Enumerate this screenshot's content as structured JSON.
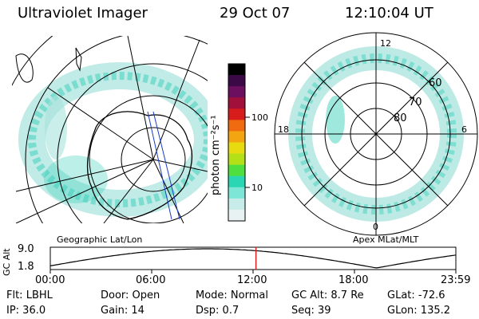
{
  "header": {
    "title": "Ultraviolet Imager",
    "date": "29 Oct 07",
    "time": "12:10:04 UT"
  },
  "left_map": {
    "label": "Geographic Lat/Lon"
  },
  "right_map": {
    "label": "Apex  MLat/MLT",
    "mlt_labels": [
      "12",
      "18",
      "6",
      "0"
    ],
    "lat_labels": [
      "60",
      "70",
      "80"
    ]
  },
  "colorbar": {
    "unit_label": "photon cm⁻²s⁻¹",
    "ticks": [
      "100",
      "10"
    ],
    "colors": [
      "#000000",
      "#3b0a46",
      "#6b0f5e",
      "#a0103a",
      "#d81b1b",
      "#f06a10",
      "#f2a510",
      "#e8dc10",
      "#b4e018",
      "#4fe040",
      "#2ad6b4",
      "#7ee6d6",
      "#c8ecea",
      "#e8f2f2"
    ]
  },
  "altitude_plot": {
    "ylabel": "GC Alt",
    "y_ticks": [
      "9.0",
      "1.8"
    ],
    "x_ticks": [
      "00:00",
      "06:00",
      "12:00",
      "18:00",
      "23:59"
    ],
    "current_marker_hours": 12.17,
    "marker_color": "#e02020"
  },
  "footer": {
    "col1": [
      "Flt: LBHL",
      "IP: 36.0"
    ],
    "col2": [
      "Door: Open",
      "Gain: 14"
    ],
    "col3": [
      "Mode: Normal",
      "Dsp:    0.7"
    ],
    "col4": [
      "GC Alt: 8.7 Re",
      "Seq: 39"
    ],
    "col5": [
      "GLat: -72.6",
      "GLon: 135.2"
    ]
  },
  "colors": {
    "aurora": "#3fd2bd",
    "aurora_light": "#a7e3dc",
    "aurora_faint": "#d8e9e6"
  }
}
